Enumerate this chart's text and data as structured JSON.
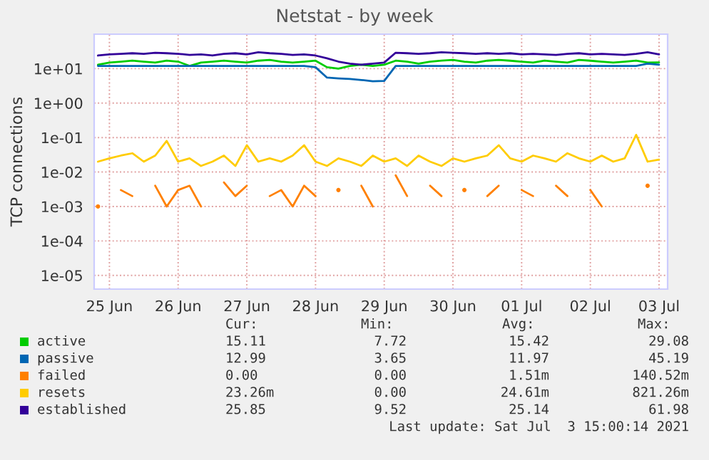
{
  "chart_data": {
    "type": "line",
    "title": "Netstat - by week",
    "ylabel": "TCP connections",
    "x": [
      "2021-06-25T08:00",
      "2021-06-25T12:00",
      "2021-06-25T16:00",
      "2021-06-25T20:00",
      "2021-06-26T00:00",
      "2021-06-26T04:00",
      "2021-06-26T08:00",
      "2021-06-26T12:00",
      "2021-06-26T16:00",
      "2021-06-26T20:00",
      "2021-06-27T00:00",
      "2021-06-27T04:00",
      "2021-06-27T08:00",
      "2021-06-27T12:00",
      "2021-06-27T16:00",
      "2021-06-27T20:00",
      "2021-06-28T00:00",
      "2021-06-28T04:00",
      "2021-06-28T08:00",
      "2021-06-28T12:00",
      "2021-06-28T16:00",
      "2021-06-28T20:00",
      "2021-06-29T00:00",
      "2021-06-29T04:00",
      "2021-06-29T08:00",
      "2021-06-29T12:00",
      "2021-06-29T16:00",
      "2021-06-29T20:00",
      "2021-06-30T00:00",
      "2021-06-30T04:00",
      "2021-06-30T08:00",
      "2021-06-30T12:00",
      "2021-06-30T16:00",
      "2021-06-30T20:00",
      "2021-07-01T00:00",
      "2021-07-01T04:00",
      "2021-07-01T08:00",
      "2021-07-01T12:00",
      "2021-07-01T16:00",
      "2021-07-01T20:00",
      "2021-07-02T00:00",
      "2021-07-02T04:00",
      "2021-07-02T08:00",
      "2021-07-02T12:00",
      "2021-07-02T16:00",
      "2021-07-02T20:00",
      "2021-07-03T00:00",
      "2021-07-03T04:00",
      "2021-07-03T08:00",
      "2021-07-03T12:00"
    ],
    "series": [
      {
        "name": "active",
        "color": "#00cc00",
        "values": [
          13,
          15,
          16,
          17,
          16,
          15,
          17,
          16,
          12,
          15,
          16,
          17,
          16,
          15,
          17,
          18,
          16,
          15,
          16,
          17,
          11,
          10,
          12,
          13,
          12,
          13,
          17,
          16,
          14,
          16,
          17,
          18,
          16,
          15,
          17,
          18,
          17,
          16,
          15,
          17,
          16,
          15,
          18,
          17,
          16,
          15,
          16,
          17,
          15,
          15.11
        ]
      },
      {
        "name": "passive",
        "color": "#0066b3",
        "values": [
          12,
          12,
          12,
          12,
          12,
          12,
          12,
          12,
          12,
          12,
          12,
          12,
          12,
          12,
          12,
          12,
          12,
          12,
          12,
          11,
          5.5,
          5.2,
          5,
          4.7,
          4.3,
          4.4,
          12,
          12,
          12,
          12,
          12,
          12,
          12,
          12,
          12,
          12,
          12,
          12,
          12,
          12,
          12,
          12,
          12,
          12,
          12,
          12,
          12,
          12,
          14,
          12.99
        ]
      },
      {
        "name": "failed",
        "color": "#ff8000",
        "values": [
          0.001,
          null,
          0.003,
          0.002,
          null,
          0.004,
          0.001,
          0.003,
          0.004,
          0.001,
          null,
          0.005,
          0.002,
          0.004,
          null,
          0.002,
          0.003,
          0.001,
          0.004,
          0.002,
          null,
          0.003,
          null,
          0.004,
          0.001,
          null,
          0.008,
          0.002,
          null,
          0.004,
          0.002,
          null,
          0.003,
          null,
          0.002,
          0.004,
          null,
          0.003,
          0.002,
          null,
          0.004,
          0.002,
          null,
          0.003,
          0.001,
          null,
          null,
          null,
          0.004,
          null
        ]
      },
      {
        "name": "resets",
        "color": "#ffcc00",
        "values": [
          0.02,
          0.025,
          0.03,
          0.035,
          0.02,
          0.03,
          0.08,
          0.02,
          0.025,
          0.015,
          0.02,
          0.03,
          0.015,
          0.06,
          0.02,
          0.025,
          0.02,
          0.03,
          0.06,
          0.02,
          0.015,
          0.025,
          0.02,
          0.015,
          0.03,
          0.02,
          0.025,
          0.015,
          0.03,
          0.02,
          0.015,
          0.025,
          0.02,
          0.025,
          0.03,
          0.06,
          0.025,
          0.02,
          0.03,
          0.025,
          0.02,
          0.035,
          0.025,
          0.02,
          0.03,
          0.02,
          0.025,
          0.12,
          0.02,
          0.023
        ]
      },
      {
        "name": "established",
        "color": "#330099",
        "values": [
          24,
          26,
          27,
          28,
          27,
          29,
          28,
          27,
          25,
          26,
          24,
          27,
          28,
          26,
          30,
          28,
          27,
          25,
          26,
          24,
          20,
          16,
          14,
          13,
          14,
          15,
          29,
          28,
          27,
          28,
          30,
          29,
          28,
          27,
          28,
          27,
          28,
          26,
          27,
          26,
          25,
          27,
          28,
          26,
          27,
          26,
          25,
          27,
          30,
          25.85
        ]
      }
    ],
    "log": "y",
    "ylim": [
      4e-06,
      100
    ],
    "yticks": [
      {
        "value": 1e-05,
        "label": "1e-05"
      },
      {
        "value": 0.0001,
        "label": "1e-04"
      },
      {
        "value": 0.001,
        "label": "1e-03"
      },
      {
        "value": 0.01,
        "label": "1e-02"
      },
      {
        "value": 0.1,
        "label": "1e-01"
      },
      {
        "value": 1,
        "label": "1e+00"
      },
      {
        "value": 10,
        "label": "1e+01"
      }
    ],
    "xlim": [
      "2021-06-25T06:40",
      "2021-07-03T15:00"
    ],
    "xticks": [
      {
        "value": "2021-06-25T12:00",
        "label": "25 Jun"
      },
      {
        "value": "2021-06-26T12:00",
        "label": "26 Jun"
      },
      {
        "value": "2021-06-27T12:00",
        "label": "27 Jun"
      },
      {
        "value": "2021-06-28T12:00",
        "label": "28 Jun"
      },
      {
        "value": "2021-06-29T12:00",
        "label": "29 Jun"
      },
      {
        "value": "2021-06-30T12:00",
        "label": "30 Jun"
      },
      {
        "value": "2021-07-01T12:00",
        "label": "01 Jul"
      },
      {
        "value": "2021-07-02T12:00",
        "label": "02 Jul"
      },
      {
        "value": "2021-07-03T12:00",
        "label": "03 Jul"
      }
    ],
    "grid": true,
    "legend": "bottom",
    "annotations": [
      "Cur:",
      "Min:",
      "Avg:",
      "Max:",
      "15.11",
      "7.72",
      "15.42",
      "29.08",
      "12.99",
      "3.65",
      "11.97",
      "45.19",
      "0.00",
      "0.00",
      "1.51m",
      "140.52m",
      "23.26m",
      "0.00",
      "24.61m",
      "821.26m",
      "25.85",
      "9.52",
      "25.14",
      "61.98",
      "Last update: Sat Jul  3 15:00:14 2021"
    ]
  }
}
